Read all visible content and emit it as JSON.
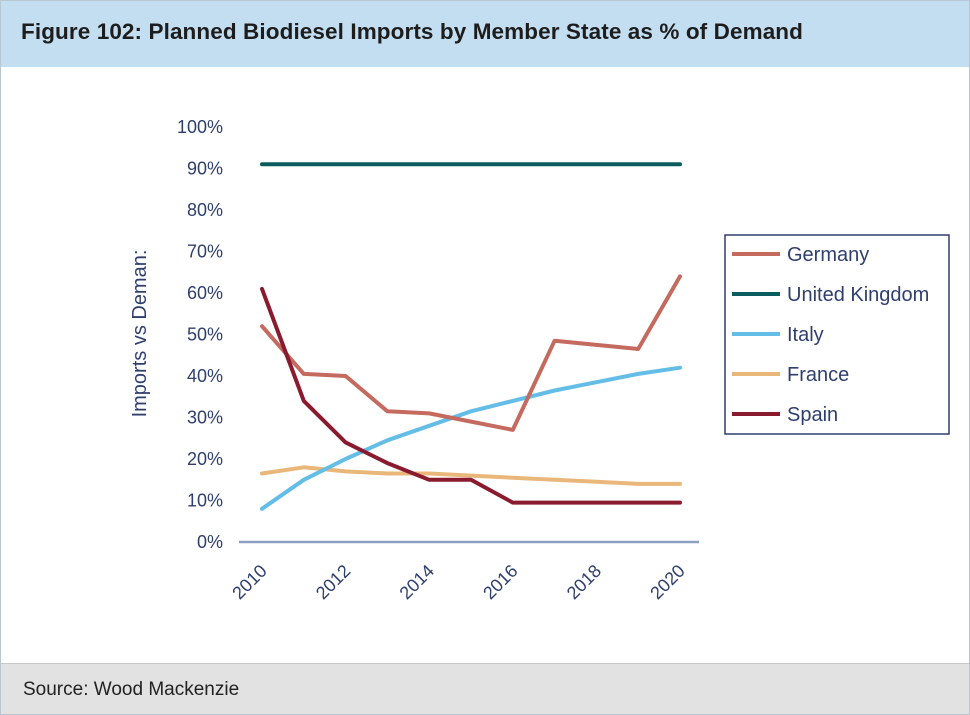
{
  "header": {
    "title": "Figure 102: Planned Biodiesel Imports by Member State as % of Demand"
  },
  "footer": {
    "source": "Source: Wood Mackenzie"
  },
  "chart_data": {
    "type": "line",
    "title": "Figure 102: Planned Biodiesel Imports by Member State as % of Demand",
    "xlabel": "",
    "ylabel": "Imports vs Deman:",
    "x": [
      2010,
      2011,
      2012,
      2013,
      2014,
      2015,
      2016,
      2017,
      2018,
      2019,
      2020
    ],
    "xticks": [
      "2010",
      "2012",
      "2014",
      "2016",
      "2018",
      "2020"
    ],
    "yticks": [
      "0%",
      "10%",
      "20%",
      "30%",
      "40%",
      "50%",
      "60%",
      "70%",
      "80%",
      "90%",
      "100%"
    ],
    "ylim": [
      0,
      100
    ],
    "grid": false,
    "legend_position": "right",
    "series": [
      {
        "name": "Germany",
        "color": "#c56a5e",
        "values": [
          52,
          40.5,
          40,
          31.5,
          31,
          29,
          27,
          48.5,
          47.5,
          46.5,
          64
        ]
      },
      {
        "name": "United Kingdom",
        "color": "#0a5c5e",
        "values": [
          91,
          91,
          91,
          91,
          91,
          91,
          91,
          91,
          91,
          91,
          91
        ]
      },
      {
        "name": "Italy",
        "color": "#63bde6",
        "values": [
          8,
          15,
          20,
          24.5,
          28,
          31.5,
          34,
          36.5,
          38.5,
          40.5,
          42
        ]
      },
      {
        "name": "France",
        "color": "#eab77a",
        "values": [
          16.5,
          18,
          17,
          16.5,
          16.5,
          16,
          15.5,
          15,
          14.5,
          14,
          14
        ]
      },
      {
        "name": "Spain",
        "color": "#8a1b2f",
        "values": [
          61,
          34,
          24,
          19,
          15,
          15,
          9.5,
          9.5,
          9.5,
          9.5,
          9.5
        ]
      }
    ]
  }
}
